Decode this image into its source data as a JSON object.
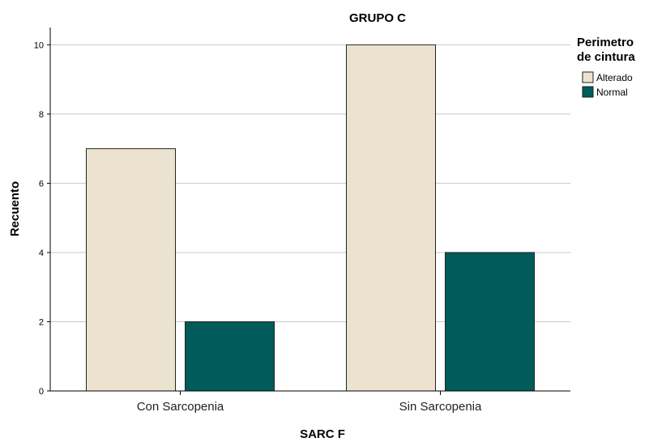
{
  "chart_data": {
    "type": "bar",
    "title": "GRUPO C",
    "xlabel": "SARC F",
    "ylabel": "Recuento",
    "categories": [
      "Con Sarcopenia",
      "Sin Sarcopenia"
    ],
    "series": [
      {
        "name": "Alterado",
        "values": [
          7,
          10
        ],
        "color": "#ebe3cf"
      },
      {
        "name": "Normal",
        "values": [
          2,
          4
        ],
        "color": "#005b5b"
      }
    ],
    "ylim": [
      0,
      10.5
    ],
    "yticks": [
      0,
      2,
      4,
      6,
      8,
      10
    ],
    "grid": true,
    "legend": {
      "title_lines": [
        "Perimetro",
        "de cintura"
      ],
      "placement": "right"
    }
  }
}
